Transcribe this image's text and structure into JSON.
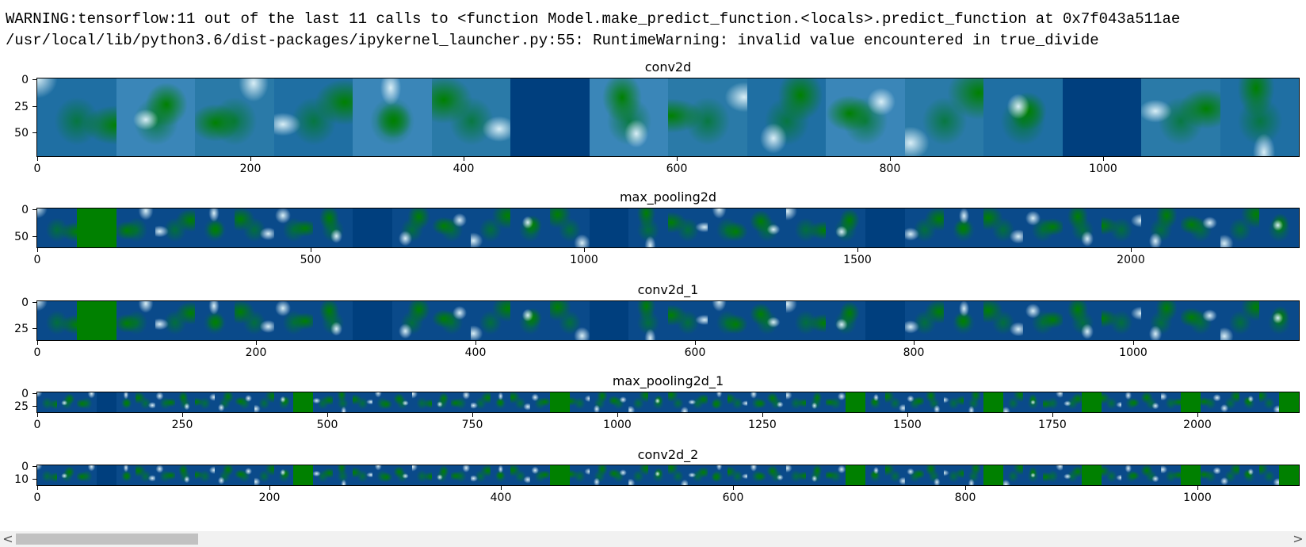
{
  "output": {
    "warning_line": "WARNING:tensorflow:11 out of the last 11 calls to <function Model.make_predict_function.<locals>.predict_function at 0x7f043a511ae",
    "runtime_warning_line": "/usr/local/lib/python3.6/dist-packages/ipykernel_launcher.py:55: RuntimeWarning: invalid value encountered in true_divide"
  },
  "colors": {
    "background_blue": "#003f7e",
    "dead_filter_green": "#008000",
    "feature_light": "#d8eef6"
  },
  "icons": {
    "scroll_left": "chevron-left-icon",
    "scroll_right": "chevron-right-icon"
  },
  "plots": [
    {
      "title": "conv2d",
      "yticks": [
        "0",
        "25",
        "50"
      ],
      "xticks": [
        "0",
        "200",
        "400",
        "600",
        "800",
        "1000"
      ]
    },
    {
      "title": "max_pooling2d",
      "yticks": [
        "0",
        "50"
      ],
      "xticks": [
        "0",
        "500",
        "1000",
        "1500",
        "2000"
      ]
    },
    {
      "title": "conv2d_1",
      "yticks": [
        "0",
        "25"
      ],
      "xticks": [
        "0",
        "200",
        "400",
        "600",
        "800",
        "1000"
      ]
    },
    {
      "title": "max_pooling2d_1",
      "yticks": [
        "0",
        "25"
      ],
      "xticks": [
        "0",
        "250",
        "500",
        "750",
        "1000",
        "1250",
        "1500",
        "1750",
        "2000"
      ]
    },
    {
      "title": "conv2d_2",
      "yticks": [
        "0",
        "10"
      ],
      "xticks": [
        "0",
        "200",
        "400",
        "600",
        "800",
        "1000"
      ]
    }
  ],
  "scrollbar": {
    "left_glyph": "<",
    "right_glyph": ">"
  }
}
